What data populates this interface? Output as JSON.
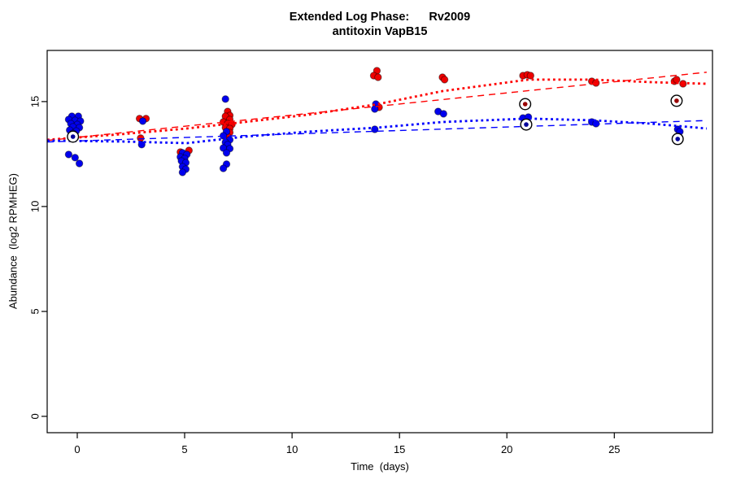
{
  "chart_data": {
    "type": "scatter",
    "title": "Extended Log Phase:      Rv2009",
    "subtitle": "antitoxin VapB15",
    "xlabel": "Time  (days)",
    "ylabel": "Abundance  (log2 RPMHEG)",
    "xlim": [
      -1.4,
      29.57
    ],
    "ylim": [
      -0.78,
      17.44
    ],
    "xticks": [
      0,
      5,
      10,
      15,
      20,
      25
    ],
    "yticks": [
      0,
      5,
      10,
      15
    ],
    "grid": false,
    "legend": null,
    "colors": {
      "red_point": "#ee0000",
      "blue_point": "#0000ee",
      "red_line": "#ff0000",
      "blue_line": "#0000ff",
      "point_rim": "rgba(0,0,0,0.45)",
      "flag_ring": "#000000",
      "flag_dot_red": "#990000",
      "flag_dot_blue": "#000099",
      "axis": "#000000"
    },
    "series": [
      {
        "name": "red",
        "color_key": "red_point",
        "points": [
          [
            2.9,
            14.19
          ],
          [
            3.2,
            14.19
          ],
          [
            2.95,
            13.26
          ],
          [
            4.8,
            12.6
          ],
          [
            5.2,
            12.67
          ],
          [
            7.0,
            14.53
          ],
          [
            7.1,
            14.34
          ],
          [
            6.9,
            14.3
          ],
          [
            7.1,
            14.15
          ],
          [
            6.8,
            14.03
          ],
          [
            7.0,
            13.95
          ],
          [
            7.2,
            13.91
          ],
          [
            6.9,
            13.76
          ],
          [
            7.1,
            13.72
          ],
          [
            7.1,
            13.53
          ],
          [
            7.0,
            13.33
          ],
          [
            13.95,
            16.47
          ],
          [
            13.8,
            16.24
          ],
          [
            14.0,
            16.16
          ],
          [
            14.05,
            14.73
          ],
          [
            17.0,
            16.16
          ],
          [
            17.1,
            16.05
          ],
          [
            20.75,
            16.24
          ],
          [
            20.95,
            16.28
          ],
          [
            21.1,
            16.24
          ],
          [
            23.95,
            15.97
          ],
          [
            24.15,
            15.89
          ],
          [
            27.8,
            15.97
          ],
          [
            27.9,
            16.05
          ],
          [
            28.2,
            15.85
          ]
        ]
      },
      {
        "name": "blue",
        "color_key": "blue_point",
        "points": [
          [
            -0.25,
            14.3
          ],
          [
            0.05,
            14.3
          ],
          [
            -0.4,
            14.15
          ],
          [
            -0.1,
            14.11
          ],
          [
            0.15,
            14.07
          ],
          [
            -0.3,
            13.95
          ],
          [
            0.0,
            13.91
          ],
          [
            -0.2,
            13.8
          ],
          [
            0.1,
            13.76
          ],
          [
            -0.35,
            13.64
          ],
          [
            -0.05,
            13.6
          ],
          [
            -0.2,
            13.49
          ],
          [
            -0.4,
            12.48
          ],
          [
            -0.1,
            12.33
          ],
          [
            0.1,
            12.05
          ],
          [
            3.05,
            14.07
          ],
          [
            3.0,
            12.95
          ],
          [
            4.9,
            12.56
          ],
          [
            5.1,
            12.48
          ],
          [
            4.8,
            12.36
          ],
          [
            5.0,
            12.29
          ],
          [
            4.85,
            12.17
          ],
          [
            5.05,
            12.09
          ],
          [
            4.9,
            11.9
          ],
          [
            5.05,
            11.78
          ],
          [
            4.9,
            11.63
          ],
          [
            6.9,
            15.12
          ],
          [
            6.95,
            13.57
          ],
          [
            6.8,
            13.37
          ],
          [
            7.1,
            13.18
          ],
          [
            6.9,
            13.06
          ],
          [
            7.0,
            12.95
          ],
          [
            6.8,
            12.79
          ],
          [
            7.1,
            12.76
          ],
          [
            6.95,
            12.56
          ],
          [
            6.95,
            12.02
          ],
          [
            6.8,
            11.82
          ],
          [
            13.9,
            14.88
          ],
          [
            13.85,
            14.65
          ],
          [
            13.85,
            13.68
          ],
          [
            16.8,
            14.53
          ],
          [
            17.05,
            14.42
          ],
          [
            20.75,
            14.22
          ],
          [
            21.0,
            14.26
          ],
          [
            23.95,
            14.03
          ],
          [
            24.15,
            13.95
          ],
          [
            27.95,
            13.68
          ],
          [
            28.05,
            13.57
          ]
        ]
      }
    ],
    "flagged_points": [
      {
        "series": "blue",
        "x": -0.2,
        "y": 13.33
      },
      {
        "series": "red",
        "x": 20.85,
        "y": 14.88
      },
      {
        "series": "blue",
        "x": 20.9,
        "y": 13.91
      },
      {
        "series": "red",
        "x": 27.9,
        "y": 15.04
      },
      {
        "series": "blue",
        "x": 27.95,
        "y": 13.22
      }
    ],
    "trend_lines": [
      {
        "name": "red-loess",
        "color_key": "red_line",
        "style": "dotted-bold",
        "points": [
          [
            -1.4,
            13.18
          ],
          [
            2.1,
            13.45
          ],
          [
            5.1,
            13.72
          ],
          [
            7.8,
            14.03
          ],
          [
            10.8,
            14.38
          ],
          [
            14.0,
            14.88
          ],
          [
            17.0,
            15.5
          ],
          [
            21.0,
            16.05
          ],
          [
            24.0,
            16.05
          ],
          [
            26.7,
            15.93
          ],
          [
            29.3,
            15.85
          ]
        ]
      },
      {
        "name": "red-linear",
        "color_key": "red_line",
        "style": "dashed-thin",
        "points": [
          [
            -1.4,
            13.15
          ],
          [
            29.3,
            16.4
          ]
        ]
      },
      {
        "name": "blue-loess",
        "color_key": "blue_line",
        "style": "dotted-bold",
        "points": [
          [
            -1.4,
            13.14
          ],
          [
            2.1,
            13.1
          ],
          [
            5.1,
            13.02
          ],
          [
            7.8,
            13.33
          ],
          [
            10.8,
            13.57
          ],
          [
            14.0,
            13.76
          ],
          [
            17.0,
            14.03
          ],
          [
            21.0,
            14.19
          ],
          [
            24.0,
            14.11
          ],
          [
            26.7,
            13.95
          ],
          [
            29.3,
            13.72
          ]
        ]
      },
      {
        "name": "blue-linear",
        "color_key": "blue_line",
        "style": "dashed-thin",
        "points": [
          [
            -1.4,
            13.08
          ],
          [
            29.3,
            14.1
          ]
        ]
      }
    ]
  }
}
